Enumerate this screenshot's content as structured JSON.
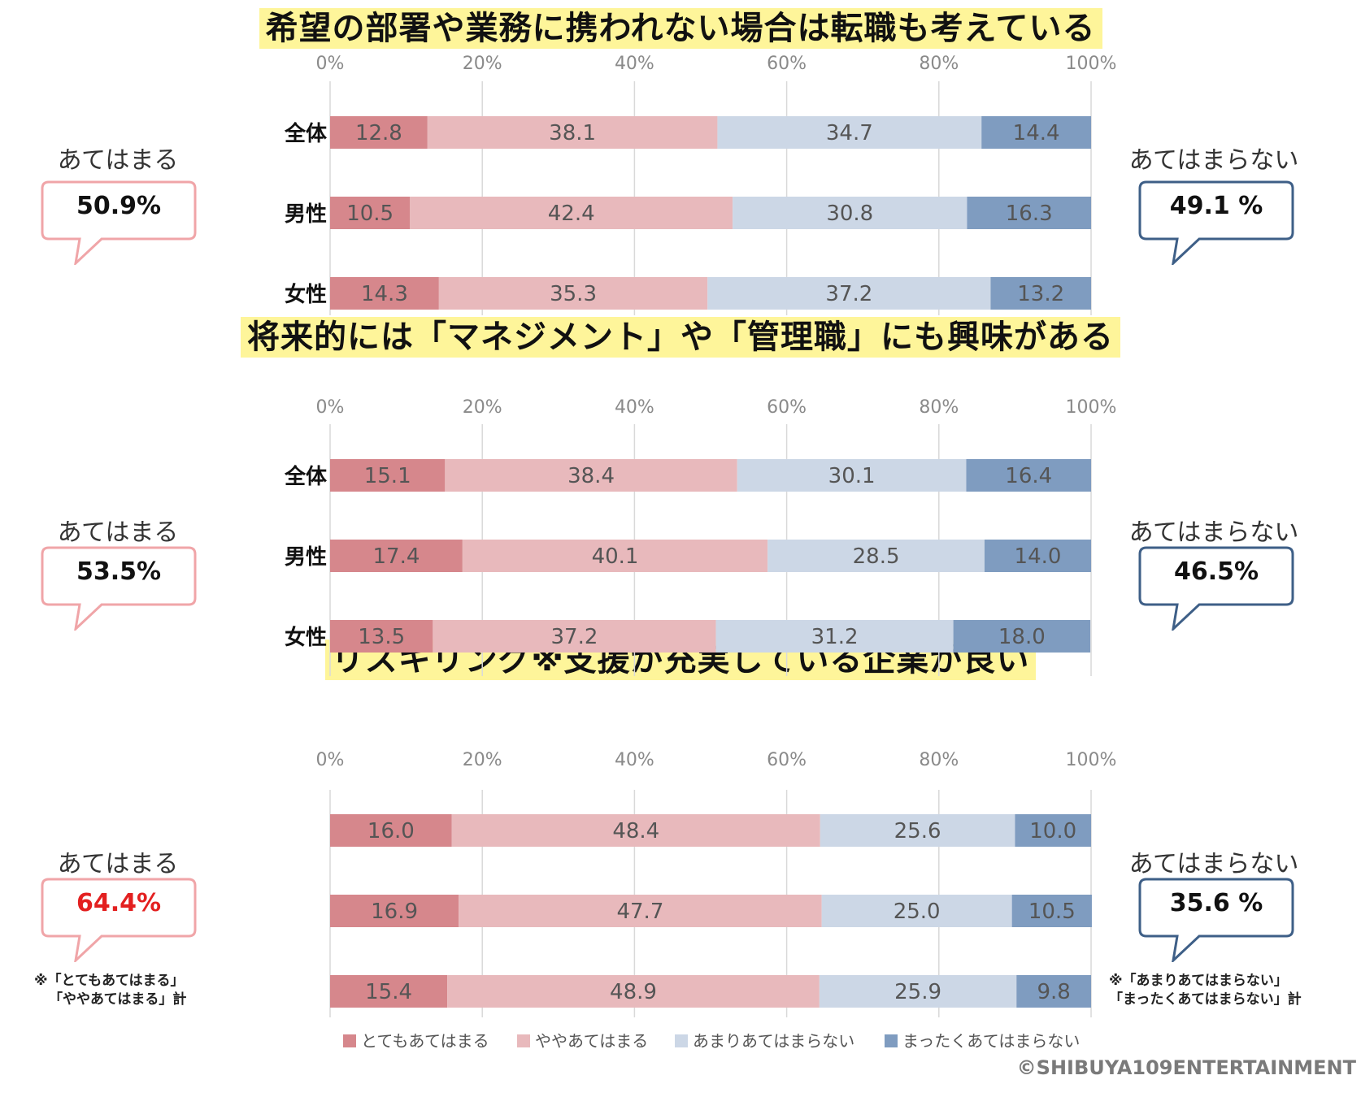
{
  "colors": {
    "very": "#d6878c",
    "somewhat": "#e8b9bc",
    "notmuch": "#ccd7e6",
    "notatall": "#7f9cc0",
    "agree_border": "#f0a5a8",
    "disagree_border": "#3e5f87",
    "title_bg": "#fef59a",
    "highlight_red": "#e32020"
  },
  "legend": [
    "とてもあてはまる",
    "ややあてはまる",
    "あまりあてはまらない",
    "まったくあてはまらない"
  ],
  "chart_data": [
    {
      "type": "bar",
      "orientation": "horizontal-stacked",
      "title": "希望の部署や業務に携われない場合は転職も考えている",
      "xlim": [
        0,
        100
      ],
      "x_ticks": [
        "0%",
        "20%",
        "40%",
        "60%",
        "80%",
        "100%"
      ],
      "categories": [
        "全体",
        "男性",
        "女性"
      ],
      "series": [
        {
          "name": "とてもあてはまる",
          "values": [
            12.8,
            10.5,
            14.3
          ]
        },
        {
          "name": "ややあてはまる",
          "values": [
            38.1,
            42.4,
            35.3
          ]
        },
        {
          "name": "あまりあてはまらない",
          "values": [
            34.7,
            30.8,
            37.2
          ]
        },
        {
          "name": "まったくあてはまらない",
          "values": [
            14.4,
            16.3,
            13.2
          ]
        }
      ],
      "labels": [
        [
          "12.8",
          "38.1",
          "34.7",
          "14.4"
        ],
        [
          "10.5",
          "42.4",
          "30.8",
          "16.3"
        ],
        [
          "14.3",
          "35.3",
          "37.2",
          "13.2"
        ]
      ],
      "left_label": "あてはまる",
      "left_value": "50.9%",
      "right_label": "あてはまらない",
      "right_value": "49.1 %"
    },
    {
      "type": "bar",
      "orientation": "horizontal-stacked",
      "title": "将来的には「マネジメント」や「管理職」にも興味がある",
      "xlim": [
        0,
        100
      ],
      "x_ticks": [
        "0%",
        "20%",
        "40%",
        "60%",
        "80%",
        "100%"
      ],
      "categories": [
        "全体",
        "男性",
        "女性"
      ],
      "series": [
        {
          "name": "とてもあてはまる",
          "values": [
            15.1,
            17.4,
            13.5
          ]
        },
        {
          "name": "ややあてはまる",
          "values": [
            38.4,
            40.1,
            37.2
          ]
        },
        {
          "name": "あまりあてはまらない",
          "values": [
            30.1,
            28.5,
            31.2
          ]
        },
        {
          "name": "まったくあてはまらない",
          "values": [
            16.4,
            14.0,
            18.0
          ]
        }
      ],
      "labels": [
        [
          "15.1",
          "38.4",
          "30.1",
          "16.4"
        ],
        [
          "17.4",
          "40.1",
          "28.5",
          "14.0"
        ],
        [
          "13.5",
          "37.2",
          "31.2",
          "18.0"
        ]
      ],
      "left_label": "あてはまる",
      "left_value": "53.5%",
      "right_label": "あてはまらない",
      "right_value": "46.5%"
    },
    {
      "type": "bar",
      "orientation": "horizontal-stacked",
      "title": "リスキリング※支援が充実している企業が良い",
      "xlim": [
        0,
        100
      ],
      "x_ticks": [
        "0%",
        "20%",
        "40%",
        "60%",
        "80%",
        "100%"
      ],
      "categories": [
        "",
        "",
        ""
      ],
      "series": [
        {
          "name": "とてもあてはまる",
          "values": [
            16.0,
            16.9,
            15.4
          ]
        },
        {
          "name": "ややあてはまる",
          "values": [
            48.4,
            47.7,
            48.9
          ]
        },
        {
          "name": "あまりあてはまらない",
          "values": [
            25.6,
            25.0,
            25.9
          ]
        },
        {
          "name": "まったくあてはまらない",
          "values": [
            10.0,
            10.5,
            9.8
          ]
        }
      ],
      "labels": [
        [
          "16.0",
          "48.4",
          "25.6",
          "10.0"
        ],
        [
          "16.9",
          "47.7",
          "25.0",
          "10.5"
        ],
        [
          "15.4",
          "48.9",
          "25.9",
          "9.8"
        ]
      ],
      "left_label": "あてはまる",
      "left_value": "64.4%",
      "right_label": "あてはまらない",
      "right_value": "35.6 %"
    }
  ],
  "notes": {
    "left_line1": "※「とてもあてはまる」",
    "left_line2": "「ややあてはまる」計",
    "right_line1": "※「あまりあてはまらない」",
    "right_line2": "「まったくあてはまらない」計"
  },
  "copyright": "©SHIBUYA109ENTERTAINMENT"
}
